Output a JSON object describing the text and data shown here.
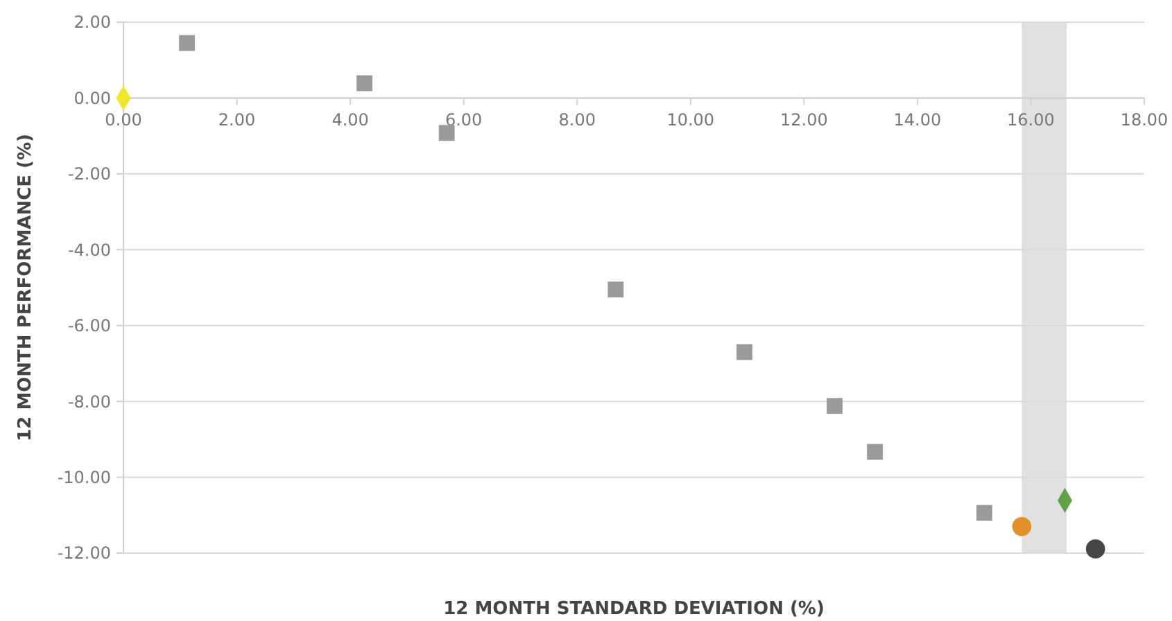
{
  "chart_data": {
    "type": "scatter",
    "xlabel": "12 MONTH STANDARD DEVIATION (%)",
    "ylabel": "12 MONTH PERFORMANCE (%)",
    "xlim": [
      0,
      18
    ],
    "ylim": [
      -12,
      2
    ],
    "xticks": [
      {
        "value": 0,
        "label": "0.00"
      },
      {
        "value": 2,
        "label": "2.00"
      },
      {
        "value": 4,
        "label": "4.00"
      },
      {
        "value": 6,
        "label": "6.00"
      },
      {
        "value": 8,
        "label": "8.00"
      },
      {
        "value": 10,
        "label": "10.00"
      },
      {
        "value": 12,
        "label": "12.00"
      },
      {
        "value": 14,
        "label": "14.00"
      },
      {
        "value": 16,
        "label": "16.00"
      },
      {
        "value": 18,
        "label": "18.00"
      }
    ],
    "yticks": [
      {
        "value": -12,
        "label": "-12.00"
      },
      {
        "value": -10,
        "label": "-10.00"
      },
      {
        "value": -8,
        "label": "-8.00"
      },
      {
        "value": -6,
        "label": "-6.00"
      },
      {
        "value": -4,
        "label": "-4.00"
      },
      {
        "value": -2,
        "label": "-2.00"
      },
      {
        "value": 0,
        "label": "0.00"
      },
      {
        "value": 2,
        "label": "2.00"
      }
    ],
    "grid": "y",
    "bands": [
      {
        "axis": "x",
        "from": 15.84,
        "to": 16.63,
        "color": "#e0e1e0"
      }
    ],
    "series": [
      {
        "color": "#999a9b",
        "marker": "square",
        "x": [
          1.12,
          4.25,
          5.7,
          8.68,
          10.95,
          12.54,
          13.25,
          15.18
        ],
        "values": [
          1.45,
          0.39,
          -0.92,
          -5.05,
          -6.7,
          -8.12,
          -9.33,
          -10.94
        ]
      },
      {
        "color": "#f0e62a",
        "marker": "diamond",
        "x": [
          0
        ],
        "values": [
          0
        ]
      },
      {
        "color": "#e0922c",
        "marker": "circle",
        "x": [
          15.84
        ],
        "values": [
          -11.3
        ]
      },
      {
        "color": "#62a14a",
        "marker": "diamond",
        "x": [
          16.6
        ],
        "values": [
          -10.61
        ]
      },
      {
        "color": "#454545",
        "marker": "circle",
        "x": [
          17.14
        ],
        "values": [
          -11.89
        ]
      }
    ]
  }
}
